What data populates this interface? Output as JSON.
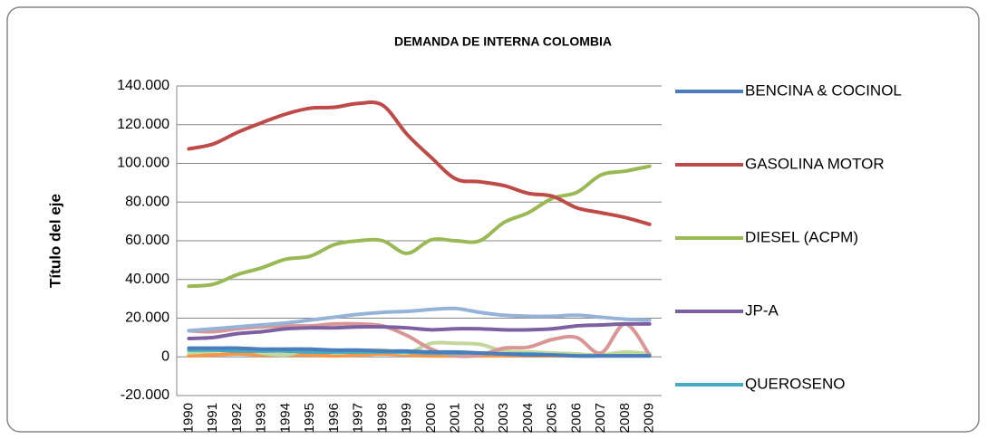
{
  "chart_data": {
    "type": "line",
    "title": "DEMANDA DE INTERNA COLOMBIA",
    "y_label": "Título del eje",
    "categories": [
      "1990",
      "1991",
      "1992",
      "1993",
      "1994",
      "1995",
      "1996",
      "1997",
      "1998",
      "1999",
      "2000",
      "2001",
      "2002",
      "2003",
      "2004",
      "2005",
      "2006",
      "2007",
      "2008",
      "2009"
    ],
    "ylim": [
      -20000,
      140000
    ],
    "yticks": [
      {
        "value": 140000,
        "label": "140.000"
      },
      {
        "value": 120000,
        "label": "120.000"
      },
      {
        "value": 100000,
        "label": "100.000"
      },
      {
        "value": 80000,
        "label": "80.000"
      },
      {
        "value": 60000,
        "label": "60.000"
      },
      {
        "value": 40000,
        "label": "40.000"
      },
      {
        "value": 20000,
        "label": "20.000"
      },
      0,
      {
        "value": -20000,
        "label": "-20.000"
      }
    ],
    "grid": true,
    "series": [
      {
        "name": "BENCINA & COCINOL",
        "color": "#4a7ebb",
        "values": [
          4500,
          4500,
          4500,
          4000,
          4000,
          4000,
          3500,
          3500,
          3000,
          3000,
          2500,
          2500,
          2000,
          1500,
          1000,
          1000,
          500,
          500,
          500,
          500
        ]
      },
      {
        "name": "GASOLINA MOTOR",
        "color": "#be4b48",
        "values": [
          107500,
          110000,
          116000,
          121000,
          125500,
          128500,
          129000,
          131000,
          130000,
          115000,
          103000,
          92000,
          90500,
          88500,
          84500,
          83000,
          77000,
          74500,
          72000,
          68500
        ]
      },
      {
        "name": "DIESEL (ACPM)",
        "color": "#98b954",
        "values": [
          36500,
          37500,
          42500,
          46000,
          50500,
          52000,
          58000,
          60000,
          60000,
          53500,
          60500,
          60000,
          60000,
          69500,
          74500,
          82000,
          85000,
          94000,
          96000,
          98500
        ]
      },
      {
        "name": "JP-A",
        "color": "#7d60a0",
        "values": [
          9500,
          10000,
          12000,
          13000,
          14500,
          15000,
          15000,
          15500,
          15500,
          15000,
          14000,
          14500,
          14500,
          14000,
          14000,
          14500,
          16000,
          16500,
          17000,
          17000
        ]
      },
      {
        "name": "QUEROSENO",
        "color": "#46aac5",
        "values": [
          3500,
          3500,
          3000,
          3000,
          3000,
          2500,
          2500,
          2500,
          2500,
          2500,
          2000,
          2000,
          2000,
          1500,
          1500,
          1000,
          500,
          500,
          500,
          500
        ]
      },
      {
        "color": "#95b3d7",
        "values": [
          13500,
          14500,
          15500,
          16500,
          17500,
          19000,
          20500,
          22000,
          23000,
          23500,
          24500,
          25000,
          23000,
          21500,
          21000,
          21000,
          21500,
          20500,
          19500,
          19000
        ]
      },
      {
        "color": "#d99694",
        "values": [
          13500,
          13000,
          14500,
          15500,
          16000,
          16000,
          17000,
          17000,
          16000,
          11000,
          4000,
          500,
          1000,
          4500,
          5000,
          9000,
          10000,
          2000,
          17000,
          1000
        ]
      },
      {
        "color": "#c3d69b",
        "values": [
          2000,
          3000,
          4500,
          2000,
          1000,
          4000,
          2000,
          3000,
          3500,
          2000,
          7000,
          7000,
          6500,
          3000,
          2500,
          2000,
          1500,
          1000,
          2500,
          1500
        ]
      },
      {
        "color": "#f79646",
        "values": [
          500,
          1000,
          1500,
          1000,
          1000,
          1000,
          500,
          1000,
          1500,
          1000,
          500,
          500,
          500,
          500,
          500,
          500,
          500,
          500,
          500,
          500
        ]
      }
    ]
  }
}
